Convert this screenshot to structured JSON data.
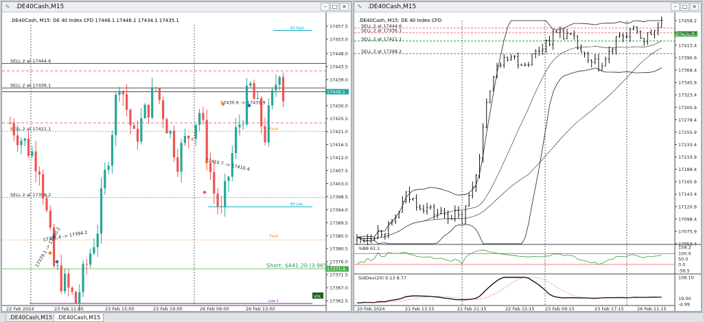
{
  "windows": {
    "left": {
      "title": ".DE40Cash,M15"
    },
    "right": {
      "title": ".DE40Cash,M15"
    }
  },
  "window_buttons": [
    "–",
    "□",
    "×"
  ],
  "tabs": [
    ".DE40Cash,M15",
    ".DE40Cash,M15"
  ],
  "active_tab": 1,
  "colors": {
    "bull": "#26a69a",
    "bear": "#ef5350",
    "purple": "#7b1fa2",
    "green": "#2e9e3e",
    "cyan": "#00acc1",
    "orange": "#f57c00"
  },
  "left_chart": {
    "header": ".DE40Cash, M15:  DE 40 Index CFD  17446.1 17446.1 17434.1 17435.1",
    "y_labels": [
      "17457.5",
      "17453.0",
      "17448.0",
      "17443.5",
      "17439.0",
      "17434.5",
      "17430.0",
      "17425.5",
      "17421.0",
      "17416.5",
      "17412.0",
      "17407.5",
      "17403.0",
      "17398.5",
      "17394.0",
      "17389.5",
      "17385.0",
      "17380.5",
      "17376.0",
      "17371.5",
      "17367.0",
      "17362.5"
    ],
    "x_labels": [
      "22 Feb 2024",
      "23 Feb 11:00",
      "23 Feb 15:00",
      "23 Feb 19:00",
      "26 Feb 09:00",
      "26 Feb 13:00"
    ],
    "sell_labels": [
      "SELL 2 at 17444.6",
      "SELL 2 at 17436.1",
      "SELL 2 at 17421.1",
      "SELL 2 at 17398.2"
    ],
    "price_tags": [
      "17436.1",
      "17371.4"
    ],
    "short_label": "Short:  $441.20 (3.96%)",
    "annotations": [
      "Eft High",
      "Eft Low",
      "Low 1",
      "Fxx4",
      "Fxx4"
    ],
    "trade_labels": [
      "17430.6 -> 17431.9",
      "17410.7 -> 17410.4",
      "17391.4 -> 17394.2",
      "17379.1 -> 17380.2"
    ],
    "vol_badge": "VOL"
  },
  "right_chart": {
    "header": ".DE40Cash, M15:  DE 40 Index CFD",
    "sell_labels": [
      "SELL 2 at 17444.6",
      "SELL 2 at 17436.1",
      "SELL 2 at 17421.1",
      "SELL 2 at 17398.2"
    ],
    "y_labels": [
      "17458.2",
      "17435.7",
      "17413.4",
      "17390.9",
      "17368.4",
      "17345.9",
      "17323.4",
      "17300.9",
      "17278.4",
      "17255.9",
      "17233.4",
      "17210.9",
      "17188.4",
      "17165.9",
      "17143.4",
      "17120.9",
      "17098.4",
      "17075.9",
      "17053.4"
    ],
    "price_tag": "17434.0",
    "x_labels": [
      "20 Feb 2024",
      "21 Feb 13:15",
      "21 Feb 21:15",
      "22 Feb 15:15",
      "23 Feb 09:15",
      "23 Feb 17:15",
      "26 Feb 11:15"
    ],
    "pctb": {
      "label": "%BB 61.1",
      "y_labels": [
        "158.2",
        "100.0",
        "50.0",
        "0.0",
        "-56.5"
      ]
    },
    "stddev": {
      "label": "StdDev(20) 9.13 8.77",
      "y_labels": [
        "108.10",
        "19.00",
        "-4.99"
      ]
    }
  }
}
